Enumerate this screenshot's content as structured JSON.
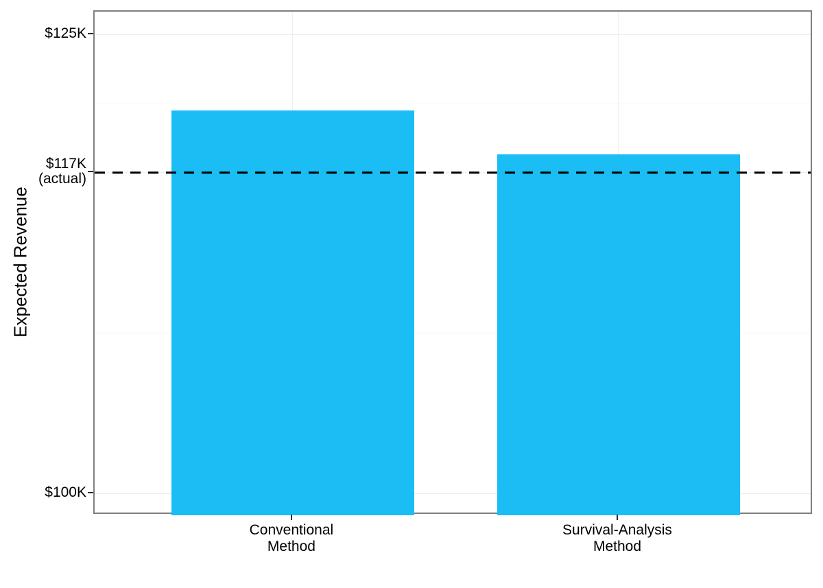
{
  "figure": {
    "background": "#FFFFFF"
  },
  "chart_data": {
    "type": "bar",
    "title": "",
    "xlabel": "",
    "ylabel": "Expected Revenue",
    "categories": [
      {
        "lines": [
          "Conventional",
          "Method"
        ],
        "x_frac": 0.2757
      },
      {
        "lines": [
          "Survival-Analysis",
          "Method"
        ],
        "x_frac": 0.729
      }
    ],
    "values_usd_k": [
      120.9,
      118.5
    ],
    "bar_width_frac": 0.3378,
    "bar_color": "#1ABEF5",
    "reference_line": {
      "value_usd_k": 117.5,
      "label": "$117K (actual)",
      "style": "dashed",
      "color": "#000000"
    },
    "y_axis": {
      "ylim_usd_k": [
        98.84,
        126.27
      ],
      "ticks": [
        {
          "value_usd_k": 100,
          "lines": [
            "$100K"
          ]
        },
        {
          "value_usd_k": 117.5,
          "lines": [
            "$117K",
            "(actual)"
          ]
        },
        {
          "value_usd_k": 125,
          "lines": [
            "$125K"
          ]
        }
      ],
      "minor_ticks_usd_k": [
        108.75,
        121.25
      ]
    },
    "grid": {
      "show_major": true,
      "show_minor": true,
      "major_color": "#EDEDED",
      "minor_color": "#F5F5F5",
      "vertical_color": "#EFEFEF"
    },
    "panel_border_color": "#7F7F7F",
    "tick_mark_color": "#2B2B2B",
    "axis_text_color": "#000000",
    "legend": null
  }
}
